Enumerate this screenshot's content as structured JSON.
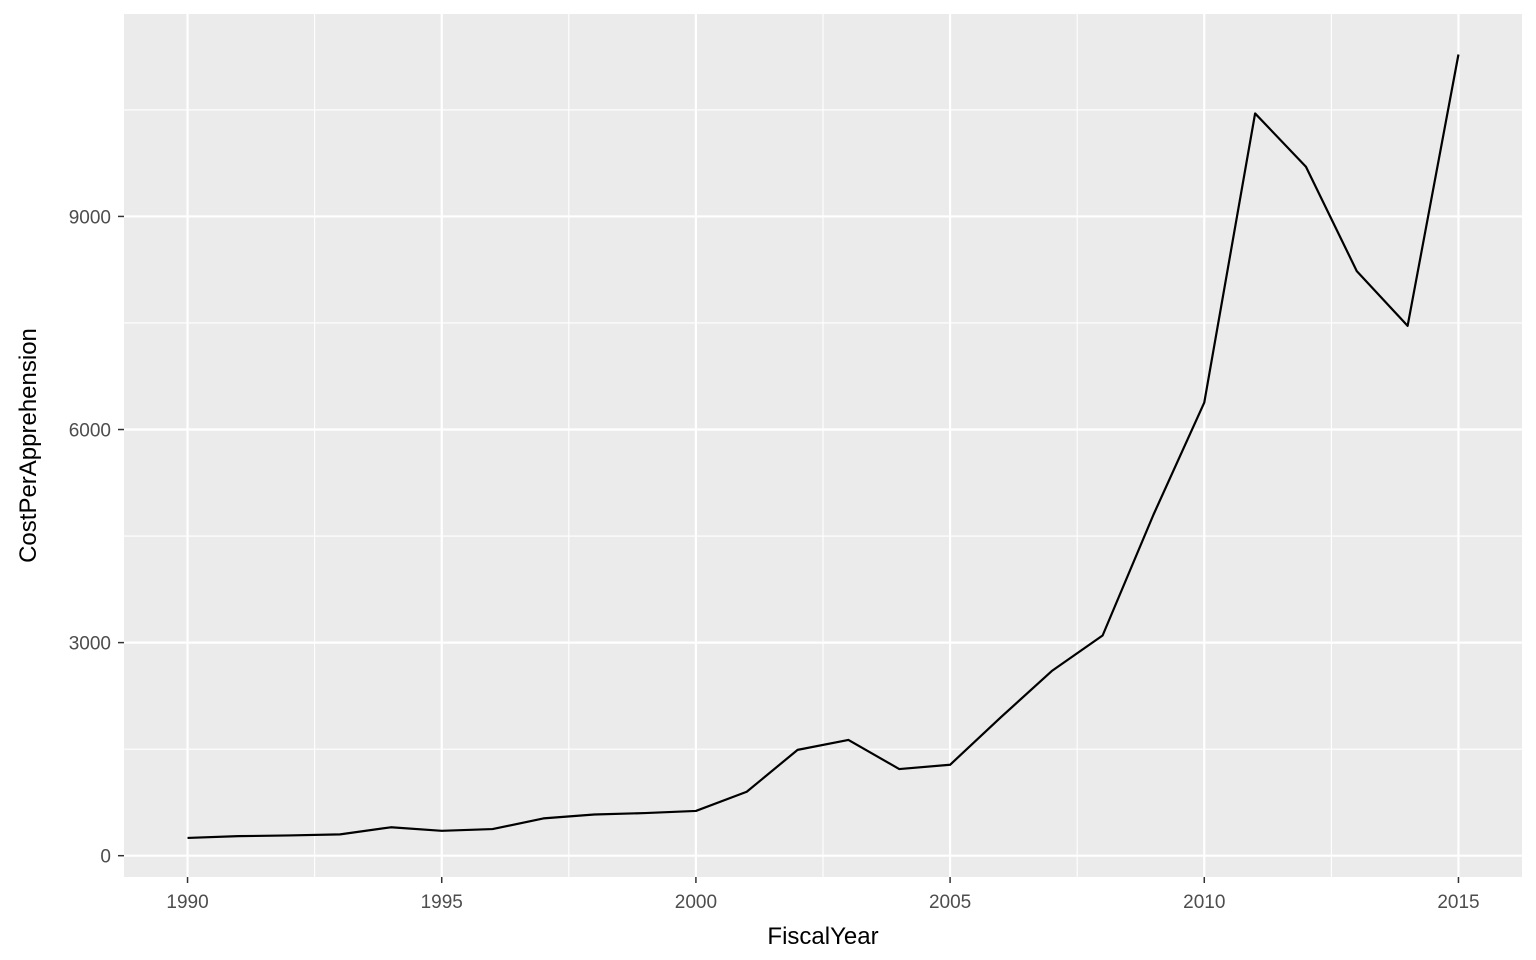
{
  "chart_data": {
    "type": "line",
    "title": "",
    "xlabel": "FiscalYear",
    "ylabel": "CostPerApprehension",
    "x": [
      1990,
      1991,
      1992,
      1993,
      1994,
      1995,
      1996,
      1997,
      1998,
      1999,
      2000,
      2001,
      2002,
      2003,
      2004,
      2005,
      2006,
      2007,
      2008,
      2009,
      2010,
      2011,
      2012,
      2013,
      2014,
      2015
    ],
    "series": [
      {
        "values": [
          250,
          275,
          285,
          300,
          400,
          350,
          375,
          525,
          580,
          600,
          630,
          900,
          1490,
          1630,
          1220,
          1280,
          1950,
          2600,
          3100,
          4800,
          6380,
          10450,
          9700,
          8230,
          7460,
          11280
        ]
      }
    ],
    "xlim": [
      1988.75,
      2016.25
    ],
    "ylim": [
      -300,
      11850
    ],
    "xticks": [
      1990,
      1995,
      2000,
      2005,
      2010,
      2015
    ],
    "yticks": [
      0,
      3000,
      6000,
      9000
    ],
    "grid": true,
    "colors": {
      "panel_background": "#ebebeb",
      "grid": "#ffffff",
      "line": "#000000"
    }
  }
}
